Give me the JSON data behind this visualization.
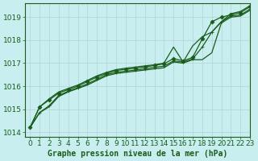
{
  "title": "Graphe pression niveau de la mer (hPa)",
  "bg_color": "#c8eef0",
  "grid_color": "#b8d8da",
  "line_color": "#1a5c1a",
  "marker_color": "#1a5c1a",
  "xlim": [
    -0.5,
    23
  ],
  "ylim": [
    1013.8,
    1019.6
  ],
  "yticks": [
    1014,
    1015,
    1016,
    1017,
    1018,
    1019
  ],
  "xticks": [
    0,
    1,
    2,
    3,
    4,
    5,
    6,
    7,
    8,
    9,
    10,
    11,
    12,
    13,
    14,
    15,
    16,
    17,
    18,
    19,
    20,
    21,
    22,
    23
  ],
  "series": [
    {
      "y": [
        1014.2,
        1014.85,
        1015.1,
        1015.55,
        1015.75,
        1015.9,
        1016.05,
        1016.25,
        1016.45,
        1016.55,
        1016.6,
        1016.65,
        1016.7,
        1016.75,
        1016.8,
        1017.05,
        1017.0,
        1017.15,
        1017.15,
        1017.45,
        1018.75,
        1019.0,
        1019.05,
        1019.3
      ],
      "marker": null,
      "linewidth": 0.9
    },
    {
      "y": [
        1014.2,
        1014.85,
        1015.15,
        1015.6,
        1015.78,
        1015.93,
        1016.1,
        1016.3,
        1016.5,
        1016.6,
        1016.65,
        1016.7,
        1016.75,
        1016.82,
        1016.87,
        1017.1,
        1017.05,
        1017.18,
        1017.7,
        1018.35,
        1018.8,
        1019.05,
        1019.1,
        1019.35
      ],
      "marker": "+",
      "linewidth": 0.9
    },
    {
      "y": [
        1014.2,
        1015.1,
        1015.4,
        1015.7,
        1015.85,
        1016.0,
        1016.2,
        1016.4,
        1016.55,
        1016.68,
        1016.73,
        1016.78,
        1016.83,
        1016.9,
        1016.97,
        1017.2,
        1017.1,
        1017.25,
        1018.05,
        1018.8,
        1019.0,
        1019.1,
        1019.2,
        1019.45
      ],
      "marker": "D",
      "linewidth": 0.9
    },
    {
      "y": [
        1014.2,
        1015.1,
        1015.45,
        1015.75,
        1015.9,
        1016.05,
        1016.25,
        1016.45,
        1016.6,
        1016.72,
        1016.78,
        1016.83,
        1016.88,
        1016.93,
        1017.0,
        1017.7,
        1017.05,
        1017.75,
        1018.15,
        1018.35,
        1018.8,
        1019.15,
        1019.25,
        1019.5
      ],
      "marker": null,
      "linewidth": 0.9
    }
  ],
  "xlabel_fontsize": 7,
  "tick_fontsize": 6.5
}
